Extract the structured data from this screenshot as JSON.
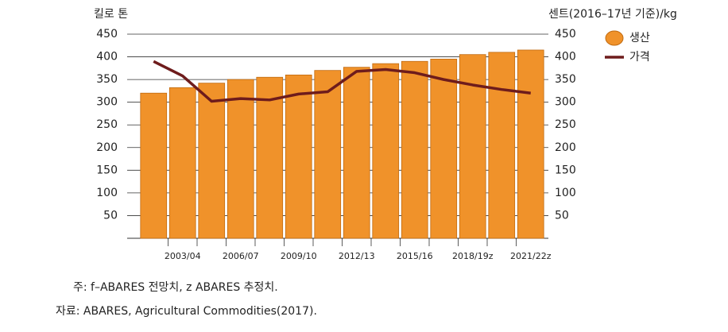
{
  "chart_data": {
    "type": "bar",
    "y_label": "킬로 톤",
    "y2_label": "센트(2016–17년 기준)/kg",
    "categories": [
      null,
      "2003/04",
      null,
      "2006/07",
      null,
      "2009/10",
      null,
      "2012/13",
      null,
      "2015/16",
      null,
      "2018/19z",
      null,
      "2021/22z"
    ],
    "series": [
      {
        "name": "생산",
        "type": "bar",
        "color": "#f0922a",
        "values": [
          320,
          332,
          342,
          350,
          355,
          360,
          370,
          377,
          385,
          390,
          395,
          405,
          410,
          415
        ]
      },
      {
        "name": "가격",
        "type": "line",
        "axis": "y2",
        "color": "#6e1c1c",
        "values": [
          390,
          358,
          302,
          308,
          305,
          318,
          323,
          368,
          372,
          365,
          350,
          338,
          328,
          320
        ]
      }
    ],
    "ylim": [
      0,
      450
    ],
    "yticks": [
      50,
      100,
      150,
      200,
      250,
      300,
      350,
      400,
      450
    ],
    "y2lim": [
      0,
      450
    ],
    "y2ticks": [
      50,
      100,
      150,
      200,
      250,
      300,
      350,
      400,
      450
    ],
    "grid": true,
    "legend": "top-right",
    "notes": [
      "주: f–ABARES 전망치, z ABARES 추정치.",
      "자료: ABARES, Agricultural Commodities(2017)."
    ]
  }
}
